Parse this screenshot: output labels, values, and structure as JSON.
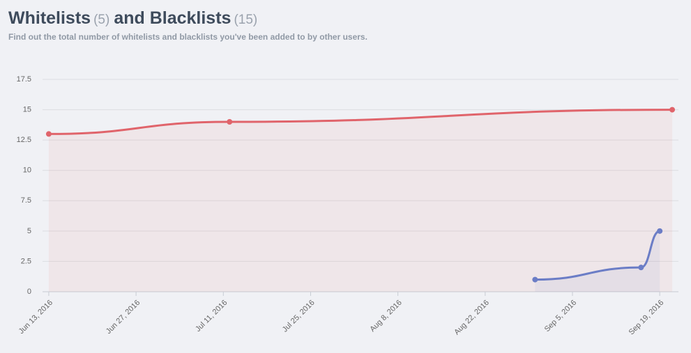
{
  "header": {
    "title_first": "Whitelists",
    "whitelist_count": "(5)",
    "title_second": "and Blacklists",
    "blacklist_count": "(15)",
    "subtitle": "Find out the total number of whitelists and blacklists you've been added to by other users."
  },
  "chart_data": {
    "type": "line",
    "grid": true,
    "area": true,
    "xlim": [
      "2016-06-12",
      "2016-09-22"
    ],
    "xticks": [
      {
        "value": "2016-06-13",
        "label": "Jun 13, 2016"
      },
      {
        "value": "2016-06-27",
        "label": "Jun 27, 2016"
      },
      {
        "value": "2016-07-11",
        "label": "Jul 11, 2016"
      },
      {
        "value": "2016-07-25",
        "label": "Jul 25, 2016"
      },
      {
        "value": "2016-08-08",
        "label": "Aug 8, 2016"
      },
      {
        "value": "2016-08-22",
        "label": "Aug 22, 2016"
      },
      {
        "value": "2016-09-05",
        "label": "Sep 5, 2016"
      },
      {
        "value": "2016-09-19",
        "label": "Sep 19, 2016"
      }
    ],
    "ylim": [
      0,
      17.5
    ],
    "yticks": [
      0,
      2.5,
      5,
      7.5,
      10,
      12.5,
      15,
      17.5
    ],
    "series": [
      {
        "color": "#e0646b",
        "x": [
          "2016-06-13",
          "2016-07-12",
          "2016-09-21"
        ],
        "values": [
          13,
          14,
          15
        ]
      },
      {
        "color": "#6b7dc6",
        "x": [
          "2016-08-30",
          "2016-09-16",
          "2016-09-19"
        ],
        "values": [
          1,
          2,
          5
        ]
      }
    ]
  }
}
